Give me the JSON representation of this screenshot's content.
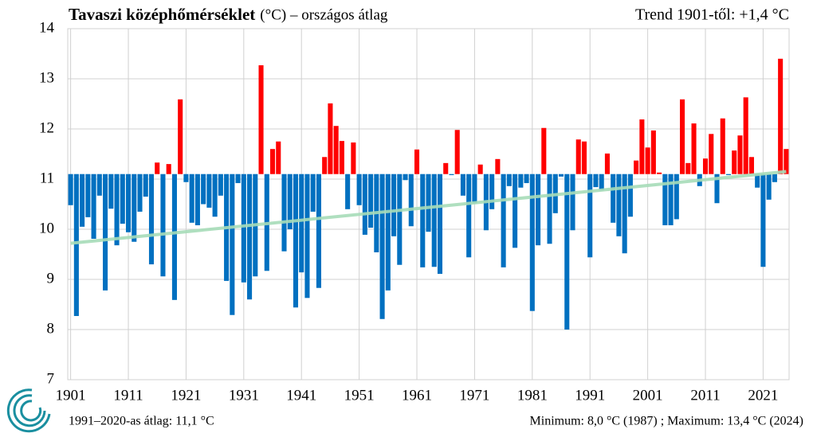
{
  "chart_data": {
    "type": "bar",
    "title": "Tavaszi középhőmérséklet",
    "subtitle": "(°C) – országos  átlag",
    "annotation": "Trend 1901-től: +1,4 °C",
    "footer_left": "1991–2020-as átlag:  11,1 °C",
    "footer_right": "Minimum:  8,0 °C (1987) ; Maximum:  13,4 °C (2024)",
    "baseline": 11.1,
    "color_above": "#ff0000",
    "color_below": "#0070c0",
    "grid": true,
    "x": [
      1901,
      1902,
      1903,
      1904,
      1905,
      1906,
      1907,
      1908,
      1909,
      1910,
      1911,
      1912,
      1913,
      1914,
      1915,
      1916,
      1917,
      1918,
      1919,
      1920,
      1921,
      1922,
      1923,
      1924,
      1925,
      1926,
      1927,
      1928,
      1929,
      1930,
      1931,
      1932,
      1933,
      1934,
      1935,
      1936,
      1937,
      1938,
      1939,
      1940,
      1941,
      1942,
      1943,
      1944,
      1945,
      1946,
      1947,
      1948,
      1949,
      1950,
      1951,
      1952,
      1953,
      1954,
      1955,
      1956,
      1957,
      1958,
      1959,
      1960,
      1961,
      1962,
      1963,
      1964,
      1965,
      1966,
      1967,
      1968,
      1969,
      1970,
      1971,
      1972,
      1973,
      1974,
      1975,
      1976,
      1977,
      1978,
      1979,
      1980,
      1981,
      1982,
      1983,
      1984,
      1985,
      1986,
      1987,
      1988,
      1989,
      1990,
      1991,
      1992,
      1993,
      1994,
      1995,
      1996,
      1997,
      1998,
      1999,
      2000,
      2001,
      2002,
      2003,
      2004,
      2005,
      2006,
      2007,
      2008,
      2009,
      2010,
      2011,
      2012,
      2013,
      2014,
      2015,
      2016,
      2017,
      2018,
      2019,
      2020,
      2021,
      2022,
      2023,
      2024,
      2025
    ],
    "values": [
      10.48,
      8.27,
      10.05,
      10.24,
      9.81,
      10.67,
      8.78,
      10.41,
      9.68,
      10.11,
      9.94,
      9.75,
      10.35,
      10.65,
      9.3,
      11.33,
      9.06,
      11.3,
      8.59,
      12.59,
      10.94,
      10.13,
      10.08,
      10.5,
      10.43,
      10.25,
      10.67,
      8.97,
      8.29,
      10.92,
      8.94,
      8.6,
      9.06,
      13.27,
      9.17,
      11.6,
      11.75,
      9.56,
      10.0,
      8.44,
      9.14,
      8.63,
      10.35,
      8.83,
      11.44,
      12.51,
      12.06,
      11.76,
      10.4,
      11.73,
      10.48,
      9.89,
      10.03,
      9.54,
      8.21,
      8.78,
      9.86,
      9.29,
      10.98,
      10.06,
      11.59,
      9.24,
      9.95,
      9.25,
      9.11,
      11.32,
      11.08,
      11.98,
      10.67,
      9.44,
      10.52,
      11.29,
      9.98,
      10.4,
      11.4,
      9.24,
      10.86,
      9.63,
      10.83,
      10.92,
      8.37,
      9.68,
      12.02,
      9.71,
      10.32,
      11.05,
      8.0,
      9.98,
      11.79,
      11.75,
      9.44,
      10.84,
      10.78,
      11.51,
      10.13,
      9.86,
      9.52,
      10.25,
      11.37,
      12.19,
      11.63,
      11.97,
      11.13,
      10.08,
      10.08,
      10.2,
      12.59,
      11.32,
      12.11,
      10.86,
      11.41,
      11.9,
      10.52,
      12.21,
      11.08,
      11.57,
      11.87,
      12.63,
      11.44,
      10.83,
      9.25,
      10.59,
      10.94,
      13.4,
      11.6
    ],
    "trend": {
      "x": [
        1901,
        2025
      ],
      "values": [
        9.72,
        11.15
      ],
      "color": "#a6dcb8"
    },
    "xlim": [
      1900.5,
      2025.5
    ],
    "xticks": [
      1901,
      1911,
      1921,
      1931,
      1941,
      1951,
      1961,
      1971,
      1981,
      1991,
      2001,
      2011,
      2021
    ],
    "ylim": [
      7,
      14
    ],
    "yticks": [
      7,
      8,
      9,
      10,
      11,
      12,
      13,
      14
    ]
  }
}
